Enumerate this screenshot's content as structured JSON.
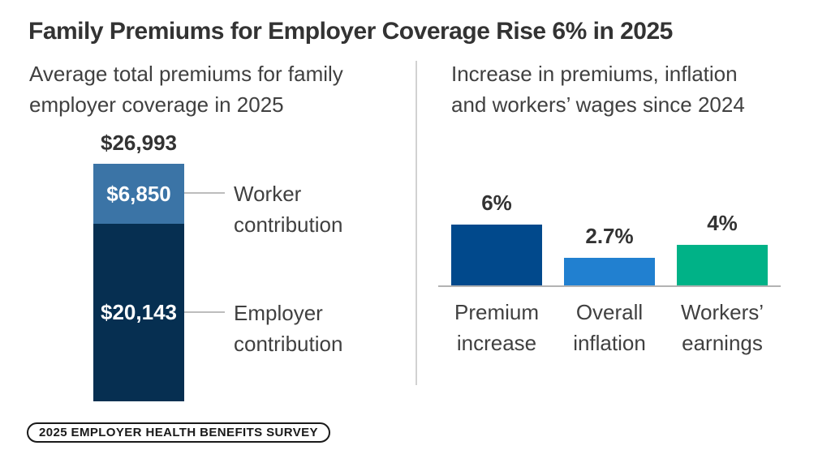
{
  "page": {
    "title": "Family Premiums for Employer Coverage Rise 6% in 2025",
    "footer_badge": "2025 EMPLOYER HEALTH BENEFITS SURVEY"
  },
  "colors": {
    "employer_navy": "#062F51",
    "worker_steel_blue": "#3B74A6",
    "premium_increase_blue": "#01498C",
    "overall_inflation_blue": "#2180D0",
    "workers_earnings_green": "#00B287",
    "text_dark": "#333333",
    "text_body": "#404040",
    "line_gray": "#BDBDBD"
  },
  "chart_data": [
    {
      "type": "bar",
      "subtype": "single-stacked-column",
      "title": "Average total premiums for family\nemployer coverage in 2025",
      "total_label": "$26,993",
      "total_value": 26993,
      "ylim": [
        0,
        26993
      ],
      "grid": false,
      "legend_position": "right-callouts",
      "segments": [
        {
          "name": "Worker contribution",
          "label": "$6,850",
          "value": 6850,
          "color": "#3B74A6",
          "callout": "Worker\ncontribution"
        },
        {
          "name": "Employer contribution",
          "label": "$20,143",
          "value": 20143,
          "color": "#062F51",
          "callout": "Employer\ncontribution"
        }
      ]
    },
    {
      "type": "bar",
      "title": "Increase in premiums, inflation\nand workers’ wages since 2024",
      "categories": [
        "Premium\nincrease",
        "Overall\ninflation",
        "Workers’\nearnings"
      ],
      "values": [
        6,
        2.7,
        4
      ],
      "value_labels": [
        "6%",
        "2.7%",
        "4%"
      ],
      "colors": [
        "#01498C",
        "#2180D0",
        "#00B287"
      ],
      "unit": "%",
      "ylim": [
        0,
        6.5
      ],
      "grid": false,
      "xlabel": "",
      "ylabel": ""
    }
  ]
}
